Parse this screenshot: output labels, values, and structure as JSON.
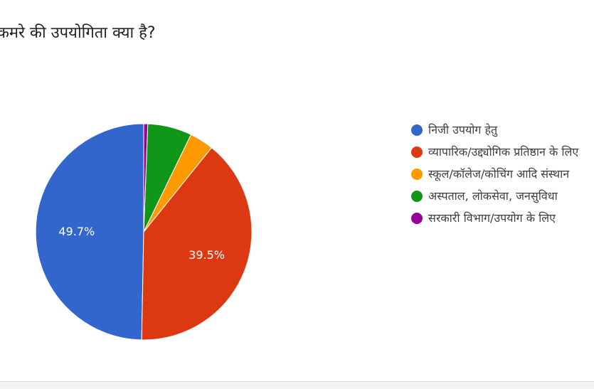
{
  "question": {
    "title": "कमरे की उपयोगिता क्या है?"
  },
  "chart_data": {
    "type": "pie",
    "title": "",
    "start_angle_deg": 270,
    "direction": "counterclockwise",
    "slices": [
      {
        "label": "निजी उपयोग हेतु",
        "value": 49.7,
        "color": "#3366cc",
        "data_label": "49.7%"
      },
      {
        "label": "व्यापारिक/उद्द्योगिक प्रतिष्ठान के लिए",
        "value": 39.5,
        "color": "#dc3912",
        "data_label": "39.5%"
      },
      {
        "label": "स्कूल/कॉलेज/कोचिंग आदि संस्थान",
        "value": 3.6,
        "color": "#ff9900",
        "data_label": ""
      },
      {
        "label": "अस्पताल, लोकसेवा, जनसुविधा",
        "value": 6.6,
        "color": "#109618",
        "data_label": ""
      },
      {
        "label": "सरकारी विभाग/उपयोग के लिए",
        "value": 0.6,
        "color": "#990099",
        "data_label": ""
      }
    ],
    "legend_position": "right"
  },
  "legend": {
    "items": [
      {
        "label": "निजी उपयोग हेतु",
        "color": "#3366cc"
      },
      {
        "label": "व्यापारिक/उद्द्योगिक प्रतिष्ठान के लिए",
        "color": "#dc3912"
      },
      {
        "label": "स्कूल/कॉलेज/कोचिंग आदि संस्थान",
        "color": "#ff9900"
      },
      {
        "label": "अस्पताल, लोकसेवा, जनसुविधा",
        "color": "#109618"
      },
      {
        "label": "सरकारी विभाग/उपयोग के लिए",
        "color": "#990099"
      }
    ]
  }
}
